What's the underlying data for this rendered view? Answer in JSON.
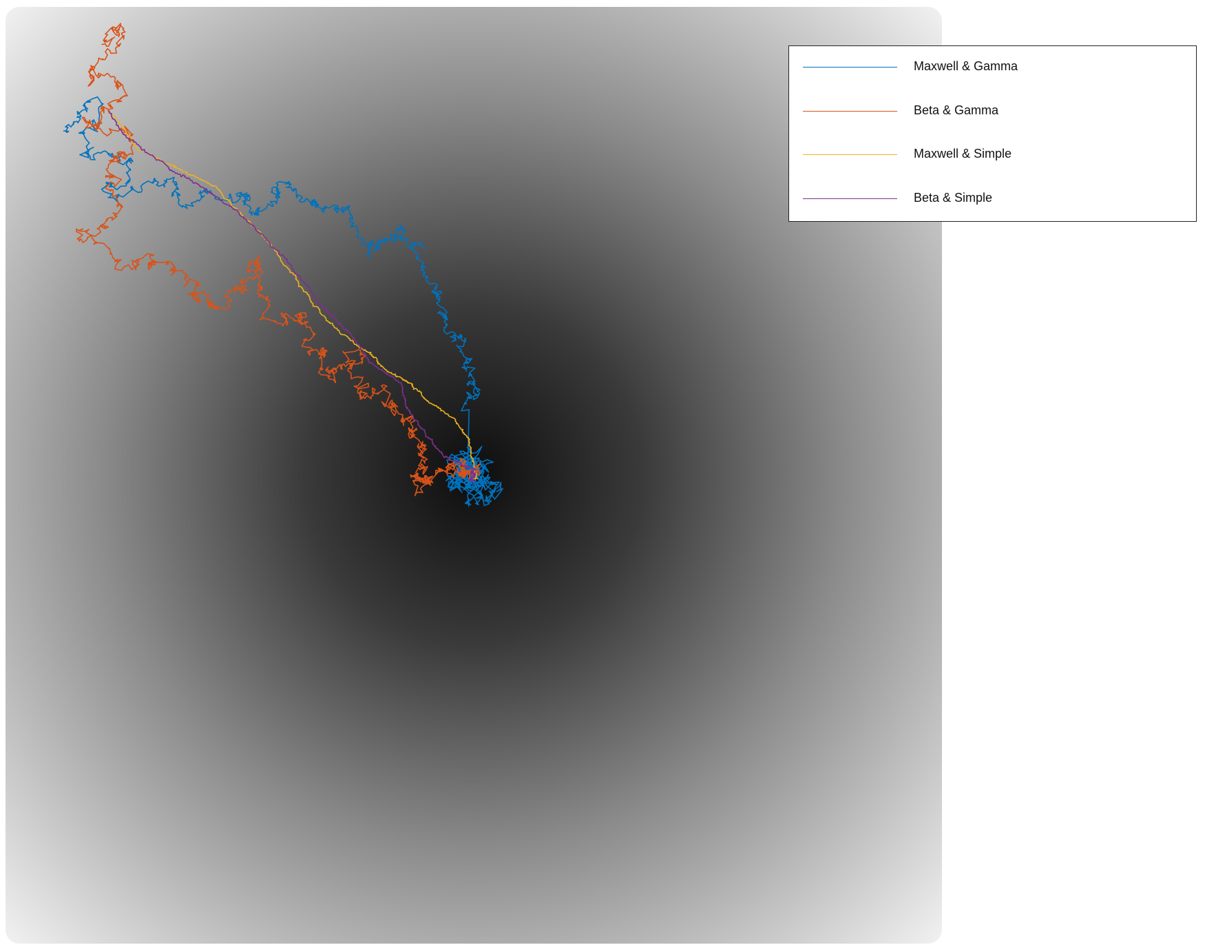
{
  "chart_data": {
    "type": "line",
    "title": "",
    "xlabel": "",
    "ylabel": "",
    "axes_visible": false,
    "grid": false,
    "legend_position": "top-right",
    "background": {
      "kind": "radial-gradient",
      "center_color": "#0d0d0d",
      "edge_color": "#f6f6f6",
      "x_range": [
        -100,
        100
      ],
      "y_range": [
        -100,
        100
      ],
      "center": [
        0,
        0
      ]
    },
    "series": [
      {
        "name": "Maxwell & Gamma",
        "color": "#0072BD",
        "roughness": 1.6,
        "waypoints": [
          [
            -88,
            74
          ],
          [
            -80,
            80
          ],
          [
            -84,
            68
          ],
          [
            -74,
            68
          ],
          [
            -78,
            60
          ],
          [
            -66,
            62
          ],
          [
            -60,
            58
          ],
          [
            -50,
            60
          ],
          [
            -46,
            56
          ],
          [
            -40,
            62
          ],
          [
            -34,
            58
          ],
          [
            -26,
            56
          ],
          [
            -22,
            48
          ],
          [
            -16,
            52
          ],
          [
            -12,
            50
          ],
          [
            -8,
            40
          ],
          [
            -6,
            34
          ],
          [
            -2,
            28
          ],
          [
            0,
            20
          ],
          [
            -1,
            14
          ]
        ],
        "cluster": {
          "center": [
            0,
            0
          ],
          "radius": 7,
          "points": 420
        }
      },
      {
        "name": "Beta & Gamma",
        "color": "#D95319",
        "roughness": 1.8,
        "waypoints": [
          [
            -80,
            92
          ],
          [
            -75,
            96
          ],
          [
            -82,
            84
          ],
          [
            -74,
            82
          ],
          [
            -84,
            76
          ],
          [
            -72,
            72
          ],
          [
            -78,
            66
          ],
          [
            -76,
            58
          ],
          [
            -84,
            50
          ],
          [
            -72,
            44
          ],
          [
            -66,
            46
          ],
          [
            -60,
            40
          ],
          [
            -56,
            36
          ],
          [
            -50,
            40
          ],
          [
            -46,
            46
          ],
          [
            -44,
            34
          ],
          [
            -36,
            34
          ],
          [
            -34,
            26
          ],
          [
            -30,
            22
          ],
          [
            -26,
            26
          ],
          [
            -24,
            18
          ],
          [
            -18,
            16
          ],
          [
            -14,
            12
          ],
          [
            -12,
            6
          ],
          [
            -10,
            2
          ],
          [
            -12,
            -2
          ],
          [
            -8,
            0
          ],
          [
            -4,
            2
          ],
          [
            -1,
            1
          ]
        ],
        "cluster": {
          "center": [
            0,
            1
          ],
          "radius": 3,
          "points": 80
        }
      },
      {
        "name": "Maxwell & Simple",
        "color": "#EDB120",
        "roughness": 0.35,
        "waypoints": [
          [
            -78,
            78
          ],
          [
            -72,
            70
          ],
          [
            -64,
            66
          ],
          [
            -56,
            62
          ],
          [
            -50,
            56
          ],
          [
            -44,
            50
          ],
          [
            -38,
            42
          ],
          [
            -34,
            36
          ],
          [
            -28,
            30
          ],
          [
            -22,
            26
          ],
          [
            -18,
            22
          ],
          [
            -14,
            20
          ],
          [
            -10,
            16
          ],
          [
            -4,
            12
          ],
          [
            -1,
            8
          ],
          [
            0,
            3
          ]
        ],
        "cluster": {
          "center": [
            0,
            0.5
          ],
          "radius": 1.5,
          "points": 40
        }
      },
      {
        "name": "Beta & Simple",
        "color": "#7E2F8E",
        "roughness": 0.35,
        "waypoints": [
          [
            -78,
            78
          ],
          [
            -74,
            72
          ],
          [
            -68,
            68
          ],
          [
            -62,
            64
          ],
          [
            -56,
            60
          ],
          [
            -50,
            56
          ],
          [
            -46,
            52
          ],
          [
            -40,
            46
          ],
          [
            -34,
            38
          ],
          [
            -30,
            34
          ],
          [
            -26,
            30
          ],
          [
            -22,
            24
          ],
          [
            -16,
            20
          ],
          [
            -14,
            14
          ],
          [
            -10,
            8
          ],
          [
            -6,
            4
          ],
          [
            -2,
            2
          ],
          [
            0,
            1
          ]
        ],
        "cluster": {
          "center": [
            0,
            0
          ],
          "radius": 1.6,
          "points": 60
        }
      }
    ]
  }
}
